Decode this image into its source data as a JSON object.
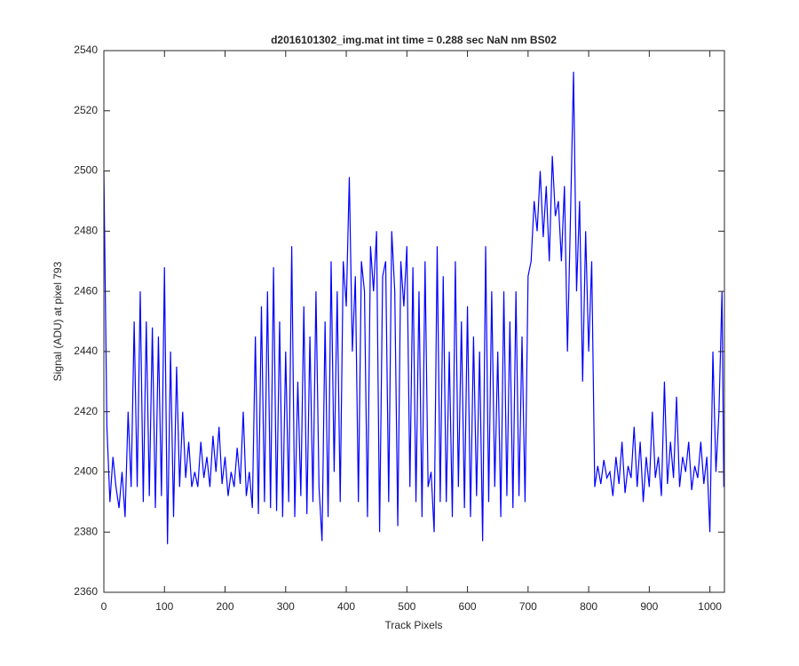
{
  "chart_data": {
    "type": "line",
    "title": "d2016101302_img.mat int time = 0.288 sec  NaN nm BS02",
    "x_label": "Track Pixels",
    "y_label": "Signal (ADU) at pixel 793",
    "xlim": [
      0,
      1024
    ],
    "ylim": [
      2360,
      2540
    ],
    "xticks": [
      0,
      100,
      200,
      300,
      400,
      500,
      600,
      700,
      800,
      900,
      1000
    ],
    "yticks": [
      2360,
      2380,
      2400,
      2420,
      2440,
      2460,
      2480,
      2500,
      2520,
      2540
    ],
    "grid": false,
    "x": [
      0,
      5,
      10,
      15,
      20,
      25,
      30,
      35,
      40,
      45,
      50,
      55,
      60,
      65,
      70,
      75,
      80,
      85,
      90,
      95,
      100,
      105,
      110,
      115,
      120,
      125,
      130,
      135,
      140,
      145,
      150,
      155,
      160,
      165,
      170,
      175,
      180,
      185,
      190,
      195,
      200,
      205,
      210,
      215,
      220,
      225,
      230,
      235,
      240,
      245,
      250,
      255,
      260,
      265,
      270,
      275,
      280,
      285,
      290,
      295,
      300,
      305,
      310,
      315,
      320,
      325,
      330,
      335,
      340,
      345,
      350,
      355,
      360,
      365,
      370,
      375,
      380,
      385,
      390,
      395,
      400,
      405,
      410,
      415,
      420,
      425,
      430,
      435,
      440,
      445,
      450,
      455,
      460,
      465,
      470,
      475,
      480,
      485,
      490,
      495,
      500,
      505,
      510,
      515,
      520,
      525,
      530,
      535,
      540,
      545,
      550,
      555,
      560,
      565,
      570,
      575,
      580,
      585,
      590,
      595,
      600,
      605,
      610,
      615,
      620,
      625,
      630,
      635,
      640,
      645,
      650,
      655,
      660,
      665,
      670,
      675,
      680,
      685,
      690,
      695,
      700,
      705,
      710,
      715,
      720,
      725,
      730,
      735,
      740,
      745,
      750,
      755,
      760,
      765,
      770,
      775,
      780,
      785,
      790,
      795,
      800,
      805,
      810,
      815,
      820,
      825,
      830,
      835,
      840,
      845,
      850,
      855,
      860,
      865,
      870,
      875,
      880,
      885,
      890,
      895,
      900,
      905,
      910,
      915,
      920,
      925,
      930,
      935,
      940,
      945,
      950,
      955,
      960,
      965,
      970,
      975,
      980,
      985,
      990,
      995,
      1000,
      1005,
      1010,
      1015,
      1020,
      1023
    ],
    "series": [
      {
        "color": "#0000ff",
        "values": [
          2500,
          2415,
          2390,
          2405,
          2395,
          2388,
          2400,
          2385,
          2420,
          2395,
          2450,
          2395,
          2460,
          2390,
          2450,
          2392,
          2448,
          2388,
          2445,
          2392,
          2468,
          2376,
          2440,
          2385,
          2435,
          2395,
          2420,
          2398,
          2410,
          2395,
          2400,
          2395,
          2410,
          2398,
          2405,
          2395,
          2412,
          2400,
          2415,
          2396,
          2405,
          2392,
          2400,
          2395,
          2408,
          2396,
          2420,
          2392,
          2400,
          2388,
          2445,
          2386,
          2455,
          2390,
          2460,
          2388,
          2468,
          2387,
          2450,
          2385,
          2440,
          2390,
          2475,
          2385,
          2430,
          2392,
          2455,
          2386,
          2445,
          2390,
          2460,
          2395,
          2377,
          2450,
          2385,
          2470,
          2400,
          2460,
          2390,
          2470,
          2455,
          2498,
          2440,
          2465,
          2390,
          2470,
          2460,
          2385,
          2475,
          2460,
          2480,
          2380,
          2465,
          2470,
          2390,
          2480,
          2460,
          2382,
          2470,
          2455,
          2475,
          2395,
          2468,
          2390,
          2460,
          2385,
          2470,
          2395,
          2400,
          2380,
          2475,
          2390,
          2465,
          2390,
          2440,
          2385,
          2470,
          2395,
          2450,
          2388,
          2455,
          2385,
          2445,
          2392,
          2440,
          2377,
          2475,
          2390,
          2460,
          2395,
          2440,
          2385,
          2460,
          2392,
          2450,
          2388,
          2460,
          2392,
          2445,
          2390,
          2465,
          2470,
          2490,
          2480,
          2500,
          2478,
          2495,
          2470,
          2505,
          2485,
          2490,
          2470,
          2495,
          2440,
          2485,
          2533,
          2460,
          2490,
          2430,
          2480,
          2440,
          2470,
          2395,
          2402,
          2396,
          2404,
          2398,
          2400,
          2392,
          2405,
          2396,
          2410,
          2393,
          2402,
          2398,
          2415,
          2395,
          2410,
          2390,
          2405,
          2395,
          2420,
          2398,
          2405,
          2392,
          2430,
          2396,
          2410,
          2398,
          2425,
          2395,
          2405,
          2400,
          2410,
          2394,
          2402,
          2398,
          2410,
          2396,
          2405,
          2380,
          2440,
          2400,
          2420,
          2460,
          2395
        ]
      }
    ]
  }
}
